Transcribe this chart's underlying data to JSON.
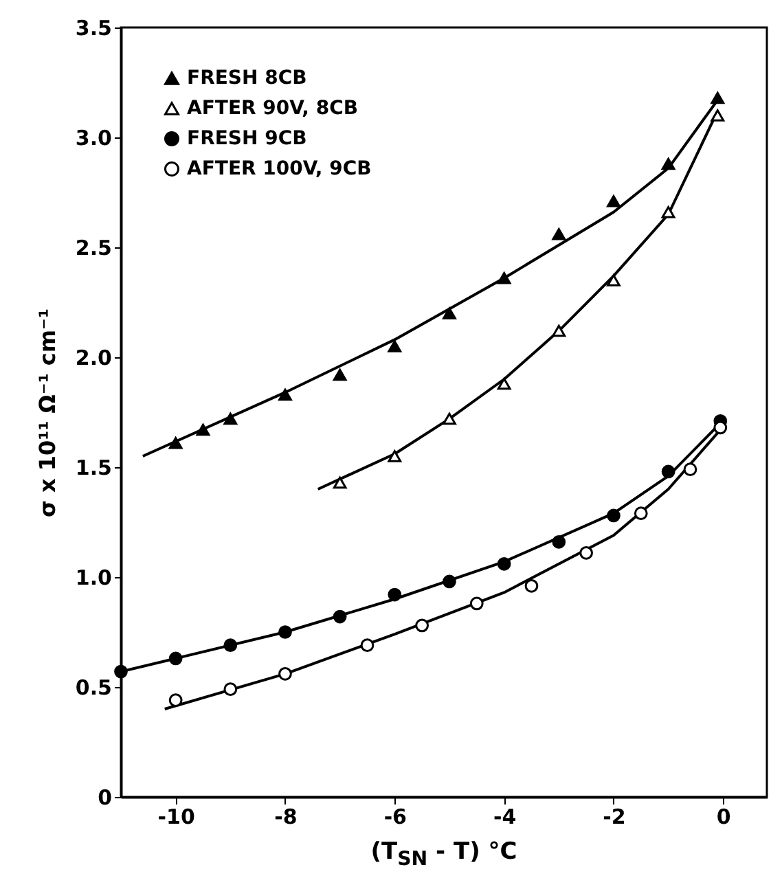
{
  "chart_data": {
    "type": "scatter",
    "xlabel": "(T$_{SN}$ - T) °C",
    "ylabel": "σ x 10¹¹ Ω⁻¹ cm⁻¹",
    "xlim": [
      -11,
      0.8
    ],
    "xticks": [
      -10,
      -8,
      -6,
      -4,
      -2,
      0
    ],
    "ylim": [
      0,
      3.5
    ],
    "yticks": [
      0,
      0.5,
      {
        "value": 1,
        "label": "1.0"
      },
      1.5,
      {
        "value": 2,
        "label": "2.0"
      },
      2.5,
      {
        "value": 3,
        "label": "3.0"
      },
      3.5
    ],
    "grid": false,
    "legend": "top left",
    "series": [
      {
        "name": "FRESH 8CB",
        "color": "#000000",
        "marker": "triangle",
        "x": [
          -10,
          -9.5,
          -9,
          -8,
          -7,
          -6,
          -5,
          -4,
          -3,
          -2,
          -1,
          -0.1
        ],
        "values": [
          1.61,
          1.67,
          1.72,
          1.83,
          1.92,
          2.05,
          2.2,
          2.36,
          2.56,
          2.71,
          2.88,
          3.18
        ]
      },
      {
        "name": "AFTER 90V, 8CB",
        "color": "#000000",
        "marker": "triangle-open",
        "x": [
          -7,
          -6,
          -5,
          -4,
          -3,
          -2,
          -1,
          -0.1
        ],
        "values": [
          1.43,
          1.55,
          1.72,
          1.88,
          2.12,
          2.35,
          2.66,
          3.1
        ]
      },
      {
        "name": "FRESH 9CB",
        "color": "#000000",
        "marker": "circle",
        "x": [
          -11,
          -10,
          -9,
          -8,
          -7,
          -6,
          -5,
          -4,
          -3,
          -2,
          -1,
          -0.05
        ],
        "values": [
          0.57,
          0.63,
          0.69,
          0.75,
          0.82,
          0.92,
          0.98,
          1.06,
          1.16,
          1.28,
          1.48,
          1.71
        ]
      },
      {
        "name": "AFTER 100V, 9CB",
        "color": "#000000",
        "marker": "circle-open",
        "x": [
          -10,
          -9,
          -8,
          -6.5,
          -5.5,
          -4.5,
          -3.5,
          -2.5,
          -1.5,
          -0.6,
          -0.05
        ],
        "values": [
          0.44,
          0.49,
          0.56,
          0.69,
          0.78,
          0.88,
          0.96,
          1.11,
          1.29,
          1.49,
          1.68
        ]
      },
      {
        "type": "line",
        "color": "#000000",
        "x": [
          -10.6,
          -8,
          -6,
          -4,
          -2,
          -1,
          -0.1
        ],
        "values": [
          1.55,
          1.84,
          2.08,
          2.36,
          2.66,
          2.86,
          3.17
        ]
      },
      {
        "type": "line",
        "color": "#000000",
        "x": [
          -7.4,
          -6,
          -5,
          -4,
          -3,
          -2,
          -1,
          -0.1
        ],
        "values": [
          1.4,
          1.56,
          1.72,
          1.9,
          2.12,
          2.37,
          2.65,
          3.12
        ]
      },
      {
        "type": "line",
        "color": "#000000",
        "x": [
          -11,
          -10,
          -8,
          -6,
          -4,
          -2,
          -1,
          -0.05
        ],
        "values": [
          0.57,
          0.63,
          0.75,
          0.9,
          1.07,
          1.29,
          1.46,
          1.7
        ]
      },
      {
        "type": "line",
        "color": "#000000",
        "x": [
          -10.2,
          -8,
          -6,
          -4,
          -2,
          -1,
          -0.05
        ],
        "values": [
          0.4,
          0.56,
          0.74,
          0.93,
          1.19,
          1.4,
          1.67
        ]
      }
    ]
  }
}
